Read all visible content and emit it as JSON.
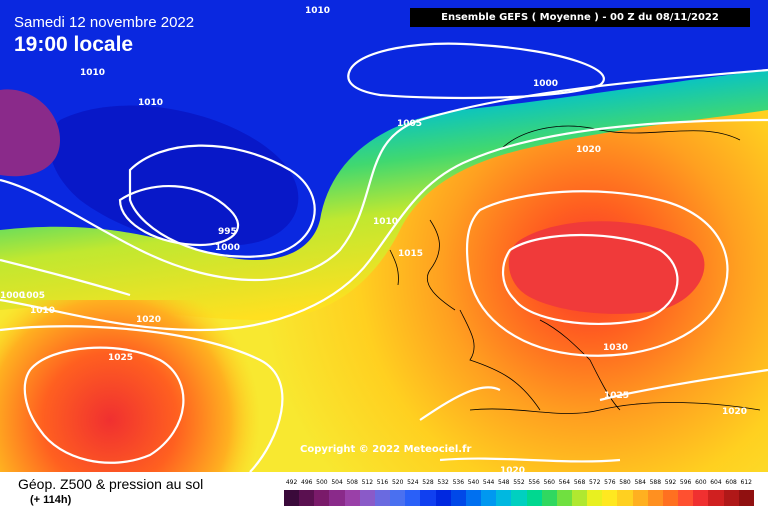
{
  "overlay": {
    "date": "Samedi 12 novembre 2022",
    "time": "19:00 locale",
    "banner": "Ensemble GEFS  ( Moyenne )  - 00 Z du 08/11/2022",
    "copyright": "Copyright © 2022 Meteociel.fr"
  },
  "footer": {
    "parameter": "Géop. Z500 & pression au sol",
    "lead": "(+ 114h)"
  },
  "isobar_labels": [
    "1010",
    "1010",
    "1010",
    "1000",
    "1005",
    "1020",
    "995",
    "1000",
    "1010",
    "1015",
    "1005",
    "1000",
    "1010",
    "1020",
    "1025",
    "1030",
    "1025",
    "1020",
    "1020"
  ],
  "scale": {
    "ticks": [
      "492",
      "496",
      "500",
      "504",
      "508",
      "512",
      "516",
      "520",
      "524",
      "528",
      "532",
      "536",
      "540",
      "544",
      "548",
      "552",
      "556",
      "560",
      "564",
      "568",
      "572",
      "576",
      "580",
      "584",
      "588",
      "592",
      "596",
      "600",
      "604",
      "608",
      "612"
    ],
    "colors": [
      "#3a0a3a",
      "#5a1050",
      "#7a1a6a",
      "#8a2a8a",
      "#9a40a8",
      "#8a5ac8",
      "#6a6ae0",
      "#4a70f0",
      "#2a60f8",
      "#1040f0",
      "#0028e0",
      "#0048e8",
      "#0070f0",
      "#0098f0",
      "#00b8e0",
      "#00d0c0",
      "#00d890",
      "#30d860",
      "#70e040",
      "#b0e830",
      "#e8f020",
      "#ffe820",
      "#ffd020",
      "#ffb020",
      "#ff9020",
      "#ff7020",
      "#ff5030",
      "#f03030",
      "#d02020",
      "#b01818",
      "#901010"
    ]
  },
  "colors": {
    "banner_bg": "#000000",
    "overlay_text": "#ffffff"
  }
}
